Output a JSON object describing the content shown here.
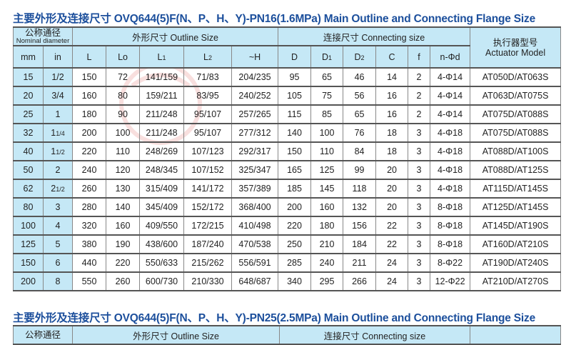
{
  "tables": [
    {
      "title": "主要外形及连接尺寸 OVQ644(5)F(N、P、H、Y)-PN16(1.6MPa) Main Outline and Connecting Flange Size",
      "group_headers": {
        "nominal_cn": "公称通径",
        "nominal_en": "Nominal diameter",
        "outline": "外形尺寸 Outline Size",
        "connecting": "连接尺寸 Connecting size",
        "actuator_cn": "执行器型号",
        "actuator_en": "Actuator Model"
      },
      "columns": [
        "mm",
        "in",
        "L",
        "Lo",
        "L1",
        "L2",
        "~H",
        "D",
        "D1",
        "D2",
        "C",
        "f",
        "n-Φd"
      ],
      "rows": [
        [
          "15",
          "1/2",
          "150",
          "72",
          "141/159",
          "71/83",
          "204/235",
          "95",
          "65",
          "46",
          "14",
          "2",
          "4-Φ14",
          "AT050D/AT063S"
        ],
        [
          "20",
          "3/4",
          "160",
          "80",
          "159/211",
          "83/95",
          "240/252",
          "105",
          "75",
          "56",
          "16",
          "2",
          "4-Φ14",
          "AT063D/AT075S"
        ],
        [
          "25",
          "1",
          "180",
          "90",
          "211/248",
          "95/107",
          "257/265",
          "115",
          "85",
          "65",
          "16",
          "2",
          "4-Φ14",
          "AT075D/AT088S"
        ],
        [
          "32",
          "1 1/4",
          "200",
          "100",
          "211/248",
          "95/107",
          "277/312",
          "140",
          "100",
          "76",
          "18",
          "3",
          "4-Φ18",
          "AT075D/AT088S"
        ],
        [
          "40",
          "1 1/2",
          "220",
          "110",
          "248/269",
          "107/123",
          "292/317",
          "150",
          "110",
          "84",
          "18",
          "3",
          "4-Φ18",
          "AT088D/AT100S"
        ],
        [
          "50",
          "2",
          "240",
          "120",
          "248/345",
          "107/152",
          "325/347",
          "165",
          "125",
          "99",
          "20",
          "3",
          "4-Φ18",
          "AT088D/AT125S"
        ],
        [
          "62",
          "2 1/2",
          "260",
          "130",
          "315/409",
          "141/172",
          "357/389",
          "185",
          "145",
          "118",
          "20",
          "3",
          "4-Φ18",
          "AT115D/AT145S"
        ],
        [
          "80",
          "3",
          "280",
          "140",
          "345/409",
          "152/172",
          "368/400",
          "200",
          "160",
          "132",
          "20",
          "3",
          "8-Φ18",
          "AT125D/AT145S"
        ],
        [
          "100",
          "4",
          "320",
          "160",
          "409/550",
          "172/215",
          "410/498",
          "220",
          "180",
          "156",
          "22",
          "3",
          "8-Φ18",
          "AT145D/AT190S"
        ],
        [
          "125",
          "5",
          "380",
          "190",
          "438/600",
          "187/240",
          "470/538",
          "250",
          "210",
          "184",
          "22",
          "3",
          "8-Φ18",
          "AT160D/AT210S"
        ],
        [
          "150",
          "6",
          "440",
          "220",
          "550/633",
          "215/262",
          "556/591",
          "285",
          "240",
          "211",
          "24",
          "3",
          "8-Φ22",
          "AT190D/AT240S"
        ],
        [
          "200",
          "8",
          "550",
          "260",
          "600/730",
          "210/330",
          "648/687",
          "340",
          "295",
          "266",
          "24",
          "3",
          "12-Φ22",
          "AT210D/AT270S"
        ]
      ]
    },
    {
      "title": "主要外形及连接尺寸 OVQ644(5)F(N、P、H、Y)-PN25(2.5MPa) Main Outline and Connecting Flange Size",
      "group_headers": {
        "nominal_cn": "公称通径",
        "outline": "外形尺寸 Outline Size",
        "connecting": "连接尺寸 Connecting size"
      }
    }
  ],
  "watermark": {
    "text": "上海凯科阀门有限公司 SHANGHAI KAIKE VALVES CO.,LTD",
    "color": "#d9534f"
  }
}
